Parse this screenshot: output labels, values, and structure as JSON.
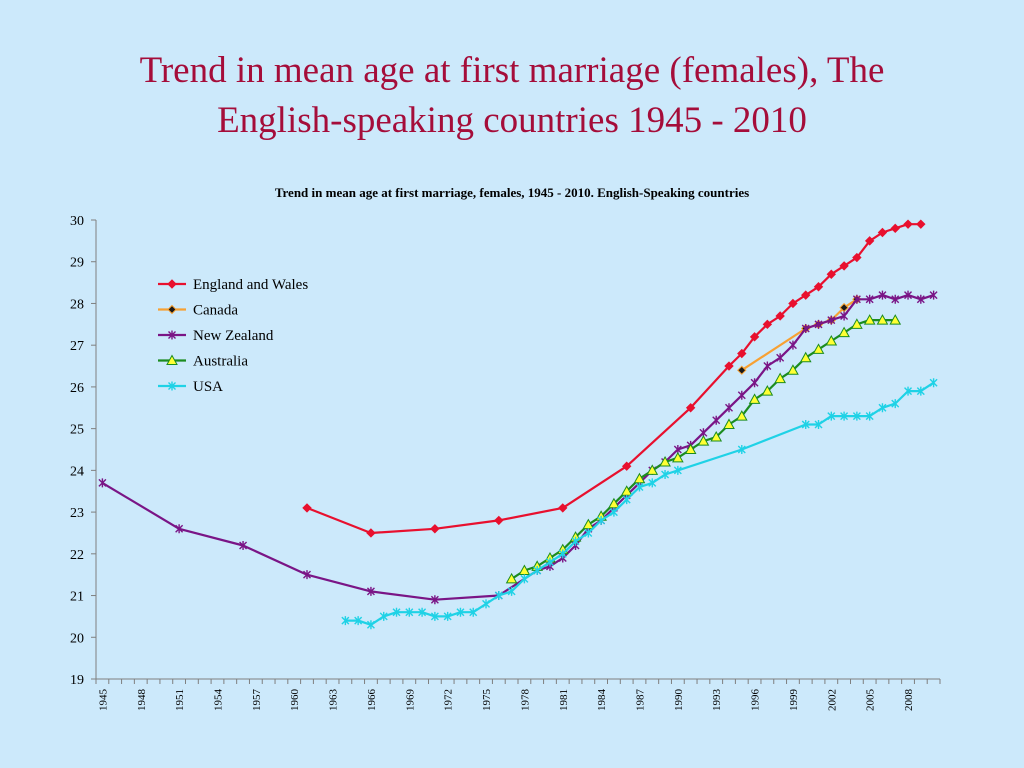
{
  "slide": {
    "title_line1": "Trend in mean age at first marriage (females), The",
    "title_line2": "English-speaking countries 1945 - 2010"
  },
  "chart_data": {
    "type": "line",
    "title": "Trend in mean age at first marriage, females, 1945 - 2010. English-Speaking countries",
    "xlabel": "",
    "ylabel": "",
    "xlim": [
      1945,
      2010
    ],
    "ylim": [
      19,
      30
    ],
    "yticks": [
      19,
      20,
      21,
      22,
      23,
      24,
      25,
      26,
      27,
      28,
      29,
      30
    ],
    "xticks": [
      "1945",
      "1948",
      "1951",
      "1954",
      "1957",
      "1960",
      "1963",
      "1966",
      "1969",
      "1972",
      "1975",
      "1978",
      "1981",
      "1984",
      "1987",
      "1990",
      "1993",
      "1996",
      "1999",
      "2002",
      "2005",
      "2008"
    ],
    "grid": false,
    "legend_position": "top-left inside",
    "series": [
      {
        "name": "England and Wales",
        "color": "#e8102e",
        "marker": "diamond",
        "x": [
          1961,
          1966,
          1971,
          1976,
          1981,
          1986,
          1991,
          1994,
          1995,
          1996,
          1997,
          1998,
          1999,
          2000,
          2001,
          2002,
          2003,
          2004,
          2005,
          2006,
          2007,
          2008,
          2009
        ],
        "y": [
          23.1,
          22.5,
          22.6,
          22.8,
          23.1,
          24.1,
          25.5,
          26.5,
          26.8,
          27.2,
          27.5,
          27.7,
          28.0,
          28.2,
          28.4,
          28.7,
          28.9,
          29.1,
          29.5,
          29.7,
          29.8,
          29.9,
          29.9
        ]
      },
      {
        "name": "Canada",
        "color": "#f7a133",
        "marker": "diamond-dark",
        "x": [
          1995,
          2000,
          2001,
          2002,
          2003,
          2004
        ],
        "y": [
          26.4,
          27.4,
          27.5,
          27.6,
          27.9,
          28.1
        ]
      },
      {
        "name": "New Zealand",
        "color": "#7a1586",
        "marker": "star",
        "x": [
          1945,
          1951,
          1956,
          1961,
          1966,
          1971,
          1976,
          1979,
          1980,
          1981,
          1982,
          1983,
          1984,
          1985,
          1986,
          1987,
          1988,
          1989,
          1990,
          1991,
          1992,
          1993,
          1994,
          1995,
          1996,
          1997,
          1998,
          1999,
          2000,
          2001,
          2002,
          2003,
          2004,
          2005,
          2006,
          2007,
          2008,
          2009,
          2010
        ],
        "y": [
          23.7,
          22.6,
          22.2,
          21.5,
          21.1,
          20.9,
          21.0,
          21.6,
          21.7,
          21.9,
          22.2,
          22.6,
          22.8,
          23.1,
          23.4,
          23.7,
          24.0,
          24.2,
          24.5,
          24.6,
          24.9,
          25.2,
          25.5,
          25.8,
          26.1,
          26.5,
          26.7,
          27.0,
          27.4,
          27.5,
          27.6,
          27.7,
          28.1,
          28.1,
          28.2,
          28.1,
          28.2,
          28.1,
          28.2
        ]
      },
      {
        "name": "Australia",
        "color": "#1b8c1f",
        "marker": "triangle",
        "x": [
          1977,
          1978,
          1979,
          1980,
          1981,
          1982,
          1983,
          1984,
          1985,
          1986,
          1987,
          1988,
          1989,
          1990,
          1991,
          1992,
          1993,
          1994,
          1995,
          1996,
          1997,
          1998,
          1999,
          2000,
          2001,
          2002,
          2003,
          2004,
          2005,
          2006,
          2007
        ],
        "y": [
          21.4,
          21.6,
          21.7,
          21.9,
          22.1,
          22.4,
          22.7,
          22.9,
          23.2,
          23.5,
          23.8,
          24.0,
          24.2,
          24.3,
          24.5,
          24.7,
          24.8,
          25.1,
          25.3,
          25.7,
          25.9,
          26.2,
          26.4,
          26.7,
          26.9,
          27.1,
          27.3,
          27.5,
          27.6,
          27.6,
          27.6
        ]
      },
      {
        "name": "USA",
        "color": "#1fd2e6",
        "marker": "star",
        "x": [
          1964,
          1965,
          1966,
          1967,
          1968,
          1969,
          1970,
          1971,
          1972,
          1973,
          1974,
          1975,
          1976,
          1977,
          1978,
          1979,
          1980,
          1981,
          1982,
          1983,
          1984,
          1985,
          1986,
          1987,
          1988,
          1989,
          1990,
          1995,
          2000,
          2001,
          2002,
          2003,
          2004,
          2005,
          2006,
          2007,
          2008,
          2009,
          2010
        ],
        "y": [
          20.4,
          20.4,
          20.3,
          20.5,
          20.6,
          20.6,
          20.6,
          20.5,
          20.5,
          20.6,
          20.6,
          20.8,
          21.0,
          21.1,
          21.4,
          21.6,
          21.8,
          22.0,
          22.3,
          22.5,
          22.8,
          23.0,
          23.3,
          23.6,
          23.7,
          23.9,
          24.0,
          24.5,
          25.1,
          25.1,
          25.3,
          25.3,
          25.3,
          25.3,
          25.5,
          25.6,
          25.9,
          25.9,
          26.1
        ]
      }
    ]
  }
}
